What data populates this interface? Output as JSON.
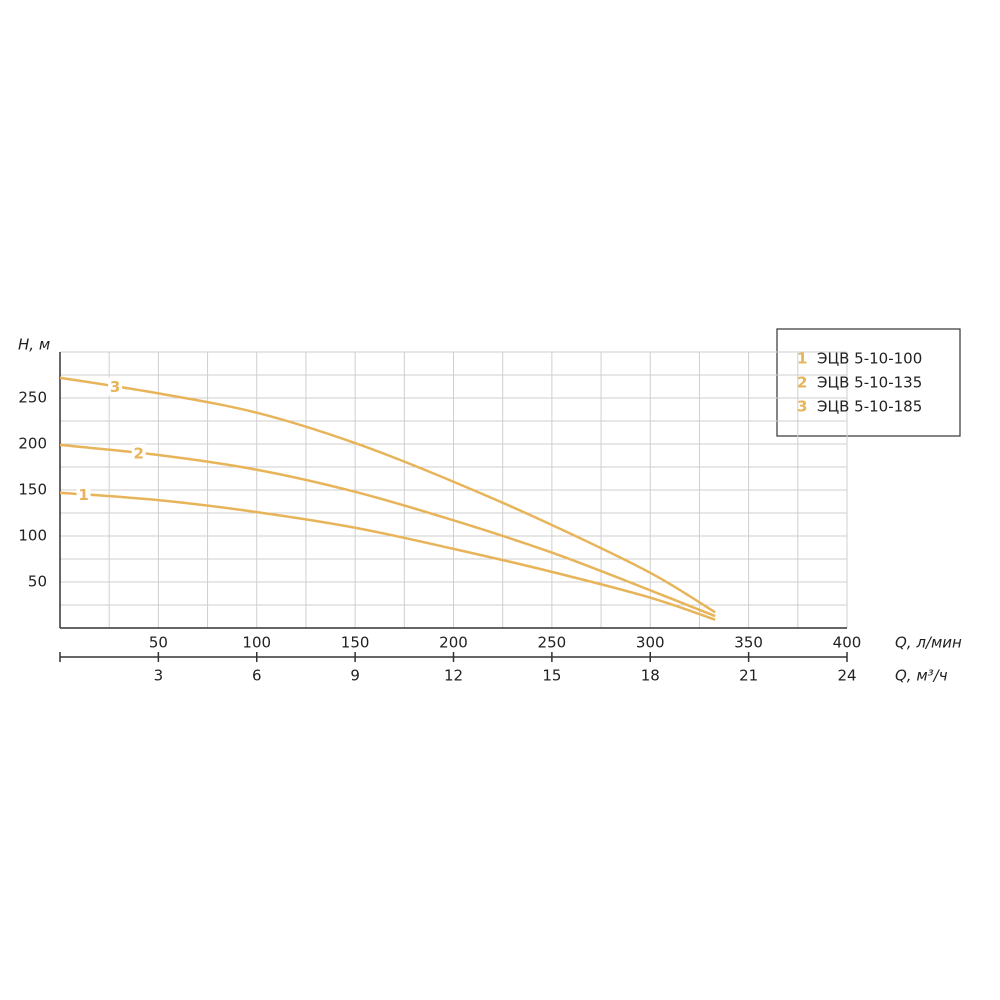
{
  "chart_data": {
    "type": "line",
    "y_label": "H, м",
    "x_label": "Q, л/мин",
    "x2_label": "Q, м³/ч",
    "x": [
      0,
      50,
      100,
      150,
      200,
      250,
      300,
      333
    ],
    "xlim": [
      0,
      400
    ],
    "xticks": [
      50,
      100,
      150,
      200,
      250,
      300,
      350,
      400
    ],
    "x2lim": [
      0,
      24
    ],
    "x2ticks": [
      3,
      6,
      9,
      12,
      15,
      18,
      21,
      24
    ],
    "ylim": [
      0,
      300
    ],
    "yticks": [
      50,
      100,
      150,
      200,
      250
    ],
    "grid": true,
    "legend": "upper right",
    "series": [
      {
        "name": "ЭЦВ 5-10-100",
        "marker": "1",
        "color": "#e8b45a",
        "values": [
          147,
          139,
          126,
          109,
          86,
          61,
          33,
          9
        ]
      },
      {
        "name": "ЭЦВ 5-10-135",
        "marker": "2",
        "color": "#e8b45a",
        "values": [
          199,
          188,
          172,
          148,
          117,
          82,
          41,
          13
        ]
      },
      {
        "name": "ЭЦВ 5-10-185",
        "marker": "3",
        "color": "#e8b45a",
        "values": [
          272,
          255,
          234,
          201,
          159,
          112,
          60,
          17
        ]
      }
    ]
  }
}
